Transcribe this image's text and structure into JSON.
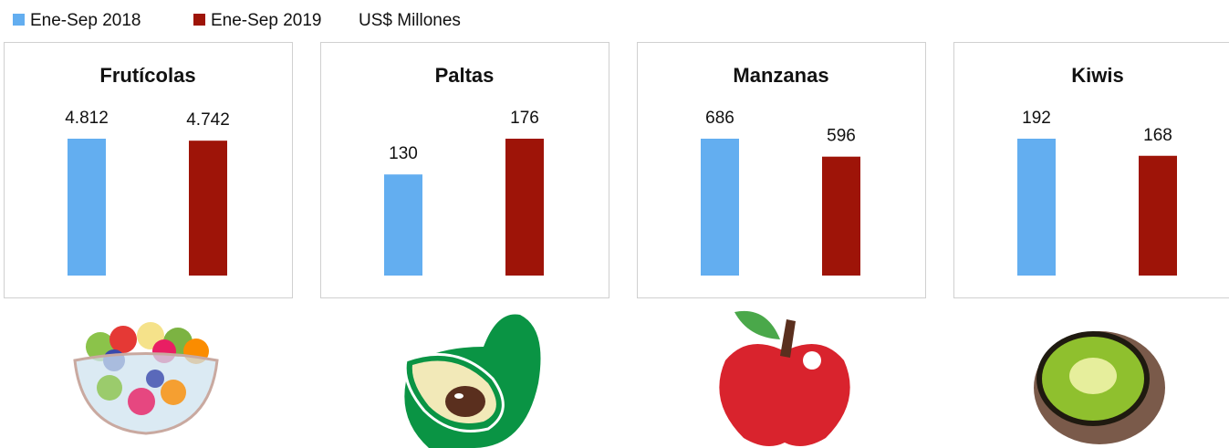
{
  "unit": "US$ Millones",
  "chart_data": [
    {
      "type": "bar",
      "title": "Frutícolas",
      "series": [
        {
          "name": "Ene-Sep 2018",
          "color": "#63aef0",
          "values": [
            4812
          ],
          "value_labels": [
            "4.812"
          ]
        },
        {
          "name": "Ene-Sep 2019",
          "color": "#9e1408",
          "values": [
            4742
          ],
          "value_labels": [
            "4.742"
          ]
        }
      ]
    },
    {
      "type": "bar",
      "title": "Paltas",
      "series": [
        {
          "name": "Ene-Sep 2018",
          "color": "#63aef0",
          "values": [
            130
          ]
        },
        {
          "name": "Ene-Sep 2019",
          "color": "#9e1408",
          "values": [
            176
          ]
        }
      ]
    },
    {
      "type": "bar",
      "title": "Manzanas",
      "series": [
        {
          "name": "Ene-Sep 2018",
          "color": "#63aef0",
          "values": [
            686
          ]
        },
        {
          "name": "Ene-Sep 2019",
          "color": "#9e1408",
          "values": [
            596
          ]
        }
      ]
    },
    {
      "type": "bar",
      "title": "Kiwis",
      "series": [
        {
          "name": "Ene-Sep 2018",
          "color": "#63aef0",
          "values": [
            192
          ]
        },
        {
          "name": "Ene-Sep 2019",
          "color": "#9e1408",
          "values": [
            168
          ]
        }
      ]
    }
  ]
}
